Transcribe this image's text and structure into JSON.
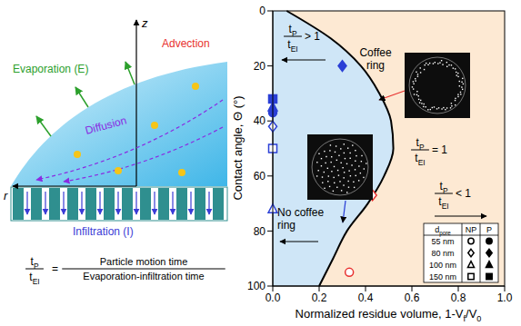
{
  "diagram": {
    "axis_labels": {
      "z": "z",
      "r": "r"
    },
    "labels": {
      "evaporation": "Evaporation (E)",
      "advection": "Advection",
      "diffusion": "Diffusion",
      "infiltration": "Infiltration (I)"
    },
    "equation": {
      "lhs": {
        "num": [
          "t",
          {
            "sub": "P"
          }
        ],
        "den": [
          "t",
          {
            "sub": "EI"
          }
        ]
      },
      "rhs": {
        "num": "Particle motion time",
        "den": "Evaporation-infiltration time"
      }
    }
  },
  "chart_data": {
    "type": "scatter",
    "xlabel": [
      "Normalized residue volume, 1-V",
      {
        "sub": "f"
      },
      "/V",
      {
        "sub": "0"
      }
    ],
    "ylabel": "Contact angle, Θ (°)",
    "xlim": [
      0,
      1
    ],
    "xticks": [
      {
        "value": 0,
        "label": "0.0"
      },
      {
        "value": 0.2,
        "label": "0.2"
      },
      {
        "value": 0.4,
        "label": "0.4"
      },
      {
        "value": 0.6,
        "label": "0.6"
      },
      {
        "value": 0.8,
        "label": "0.8"
      },
      {
        "value": 1,
        "label": "1.0"
      }
    ],
    "ylim": [
      0,
      100
    ],
    "yticks": [
      0,
      20,
      40,
      60,
      80,
      100
    ],
    "grid": false,
    "boundary": {
      "x": [
        0.06,
        0.25,
        0.38,
        0.46,
        0.51,
        0.52,
        0.48,
        0.41,
        0.32,
        0.26,
        0.2
      ],
      "y": [
        0,
        10,
        20,
        30,
        40,
        50,
        60,
        70,
        80,
        90,
        100
      ],
      "color": "#000000"
    },
    "series": [
      {
        "marker": "circle_open",
        "color": "#e8312f",
        "x": [
          0.33
        ],
        "values": [
          95
        ]
      },
      {
        "marker": "diamond_open",
        "color": "#e8312f",
        "x": [
          0.43
        ],
        "values": [
          67
        ]
      },
      {
        "marker": "diamond_filled",
        "color": "#2a3fd6",
        "x": [
          0.3
        ],
        "values": [
          20
        ]
      },
      {
        "marker": "triangle_open",
        "color": "#2a3fd6",
        "x": [
          0
        ],
        "values": [
          72
        ]
      },
      {
        "marker": "square_open",
        "color": "#2a3fd6",
        "x": [
          0
        ],
        "values": [
          50
        ]
      },
      {
        "marker": "diamond_open",
        "color": "#2a3fd6",
        "x": [
          0
        ],
        "values": [
          42
        ]
      },
      {
        "marker": "circle_filled",
        "color": "#2a3fd6",
        "x": [
          0
        ],
        "values": [
          37
        ]
      },
      {
        "marker": "triangle_filled",
        "color": "#2a3fd6",
        "x": [
          0
        ],
        "values": [
          35
        ]
      },
      {
        "marker": "square_filled",
        "color": "#2a3fd6",
        "x": [
          0
        ],
        "values": [
          32
        ]
      }
    ],
    "annotations": {
      "above": {
        "num": [
          "t",
          {
            "sub": "P"
          }
        ],
        "den": [
          "t",
          {
            "sub": "EI"
          }
        ],
        "rel": "> 1"
      },
      "boundary": {
        "num": [
          "t",
          {
            "sub": "P"
          }
        ],
        "den": [
          "t",
          {
            "sub": "EI"
          }
        ],
        "rel": "= 1"
      },
      "below": {
        "num": [
          "t",
          {
            "sub": "P"
          }
        ],
        "den": [
          "t",
          {
            "sub": "EI"
          }
        ],
        "rel": "< 1"
      },
      "coffee_ring": "Coffee ring",
      "no_coffee_ring": "No coffee ring"
    },
    "legend_table": {
      "header": [
        [
          "d",
          {
            "sub": "pore"
          }
        ],
        "NP",
        "P"
      ],
      "rows": [
        {
          "label": "55 nm",
          "marker": "circle"
        },
        {
          "label": "80 nm",
          "marker": "diamond"
        },
        {
          "label": "100 nm",
          "marker": "triangle"
        },
        {
          "label": "150 nm",
          "marker": "square"
        }
      ]
    }
  }
}
